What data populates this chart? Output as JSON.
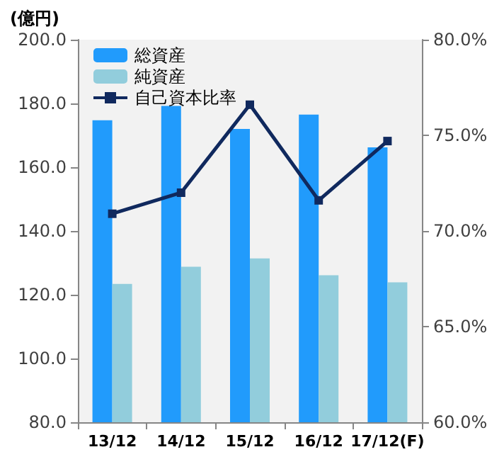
{
  "chart_data": {
    "type": "bar",
    "ylabel": "(億円)",
    "categories": [
      "13/12",
      "14/12",
      "15/12",
      "16/12",
      "17/12(F)"
    ],
    "series": [
      {
        "name": "総資産",
        "color": "#219bfc",
        "values": [
          174.7,
          179.2,
          172.0,
          176.5,
          166.2
        ]
      },
      {
        "name": "純資産",
        "color": "#92cddc",
        "values": [
          123.4,
          128.8,
          131.4,
          126.1,
          123.9
        ]
      },
      {
        "name": "自己資本比率",
        "type": "line",
        "axis": "y2",
        "color": "#10295e",
        "values": [
          70.9,
          72.0,
          76.6,
          71.6,
          74.7
        ]
      }
    ],
    "ylim": [
      80,
      200
    ],
    "yticks": [
      {
        "value": 80,
        "label": "80.0"
      },
      {
        "value": 100,
        "label": "100.0"
      },
      {
        "value": 120,
        "label": "120.0"
      },
      {
        "value": 140,
        "label": "140.0"
      },
      {
        "value": 160,
        "label": "160.0"
      },
      {
        "value": 180,
        "label": "180.0"
      },
      {
        "value": 200,
        "label": "200.0"
      }
    ],
    "y2lim": [
      60,
      80
    ],
    "y2ticks": [
      {
        "value": 60,
        "label": "60.0%"
      },
      {
        "value": 65,
        "label": "65.0%"
      },
      {
        "value": 70,
        "label": "70.0%"
      },
      {
        "value": 75,
        "label": "75.0%"
      },
      {
        "value": 80,
        "label": "80.0%"
      }
    ],
    "grid": false,
    "legend": "top left",
    "marker": "square",
    "line_style": "solid"
  }
}
